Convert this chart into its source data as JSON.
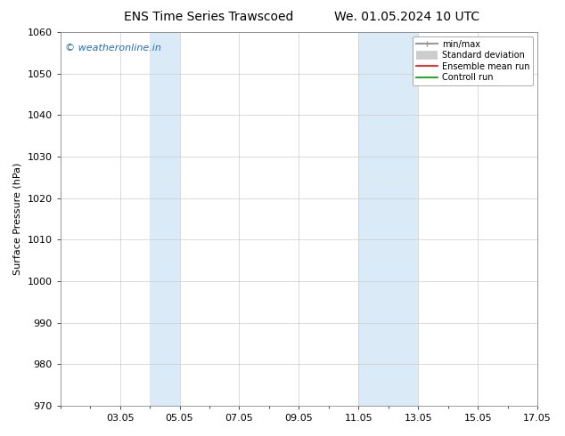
{
  "title_left": "ENS Time Series Trawscoed",
  "title_right": "We. 01.05.2024 10 UTC",
  "ylabel": "Surface Pressure (hPa)",
  "ylim": [
    970,
    1060
  ],
  "yticks": [
    970,
    980,
    990,
    1000,
    1010,
    1020,
    1030,
    1040,
    1050,
    1060
  ],
  "xlim": [
    1,
    17
  ],
  "xtick_positions": [
    3,
    5,
    7,
    9,
    11,
    13,
    15,
    17
  ],
  "xtick_labels": [
    "03.05",
    "05.05",
    "07.05",
    "09.05",
    "11.05",
    "13.05",
    "15.05",
    "17.05"
  ],
  "shaded_bands": [
    {
      "x_start": 4,
      "x_end": 5
    },
    {
      "x_start": 11,
      "x_end": 13
    }
  ],
  "shaded_color": "#daeaf6",
  "watermark": "© weatheronline.in",
  "watermark_color": "#1e6eb5",
  "legend_items": [
    {
      "label": "min/max",
      "color": "#999999",
      "lw": 1.5
    },
    {
      "label": "Standard deviation",
      "color": "#cccccc",
      "lw": 7
    },
    {
      "label": "Ensemble mean run",
      "color": "#ff0000",
      "lw": 1.2
    },
    {
      "label": "Controll run",
      "color": "#009900",
      "lw": 1.2
    }
  ],
  "background_color": "#ffffff",
  "grid_color": "#cccccc",
  "title_fontsize": 10,
  "tick_fontsize": 8,
  "ylabel_fontsize": 8,
  "watermark_fontsize": 8
}
